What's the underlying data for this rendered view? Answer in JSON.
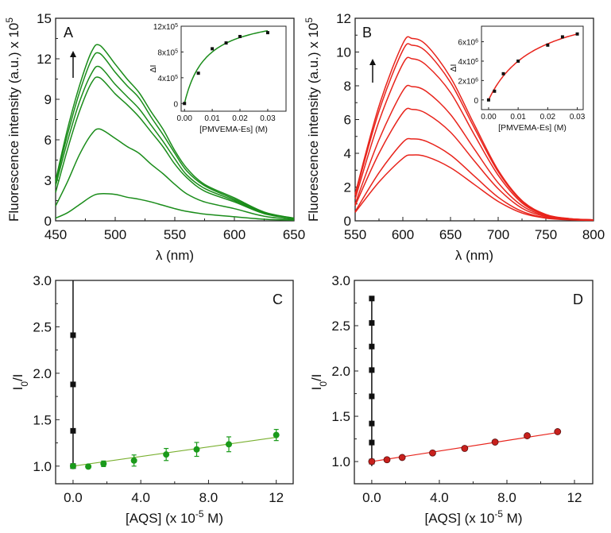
{
  "chart_data": [
    {
      "panel": "A",
      "type": "line",
      "letter": "A",
      "xlabel": "λ (nm)",
      "ylabel": "Fluorescence intensity (a.u.) x 10",
      "ylabel_sup": "5",
      "xlim": [
        450,
        650
      ],
      "ylim": [
        0,
        15
      ],
      "xticks": [
        450,
        500,
        550,
        600,
        650
      ],
      "xminor": 25,
      "yticks": [
        0,
        3,
        6,
        9,
        12,
        15
      ],
      "yminor": 1.5,
      "grid": false,
      "color": "#1a8c1a",
      "arrow": "up",
      "x": [
        450,
        460,
        470,
        480,
        487,
        500,
        510,
        520,
        530,
        540,
        550,
        560,
        575,
        600,
        625,
        650
      ],
      "series": [
        {
          "values": [
            3.0,
            6.8,
            10.0,
            12.5,
            13.0,
            11.6,
            10.5,
            9.5,
            8.1,
            6.8,
            5.2,
            3.9,
            2.7,
            1.7,
            0.65,
            0.2
          ]
        },
        {
          "values": [
            2.85,
            6.4,
            9.5,
            11.9,
            12.4,
            11.0,
            10.0,
            9.1,
            7.7,
            6.4,
            5.0,
            3.7,
            2.6,
            1.6,
            0.62,
            0.19
          ]
        },
        {
          "values": [
            2.6,
            5.9,
            8.8,
            10.9,
            11.4,
            10.1,
            9.2,
            8.3,
            7.1,
            5.9,
            4.6,
            3.4,
            2.4,
            1.5,
            0.57,
            0.17
          ]
        },
        {
          "values": [
            2.1,
            5.3,
            8.1,
            10.2,
            10.6,
            9.4,
            8.6,
            7.7,
            6.6,
            5.5,
            4.2,
            3.2,
            2.2,
            1.4,
            0.53,
            0.16
          ]
        },
        {
          "values": [
            1.1,
            2.9,
            4.9,
            6.4,
            6.8,
            6.1,
            5.5,
            5.0,
            4.2,
            3.5,
            2.7,
            2.0,
            1.4,
            0.9,
            0.34,
            0.1
          ]
        },
        {
          "values": [
            0.2,
            0.6,
            1.2,
            1.8,
            2.0,
            1.95,
            1.75,
            1.6,
            1.4,
            1.15,
            0.9,
            0.7,
            0.5,
            0.3,
            0.12,
            0.05
          ]
        }
      ],
      "inset": {
        "type": "scatter",
        "xlabel": "[PMVEMA-Es] (M)",
        "ylabel": "ΔI",
        "xlim": [
          -0.0012,
          0.0366
        ],
        "ylim": [
          -1.2,
          12
        ],
        "xticks": [
          0,
          0.01,
          0.02,
          0.03
        ],
        "xtick_labels": [
          "0.00",
          "0.01",
          "0.02",
          "0.03"
        ],
        "yticks": [
          0,
          4,
          8,
          12
        ],
        "ytick_labels": [
          "0",
          "4x10",
          "8x10",
          "12x10"
        ],
        "ytick_sup": "5",
        "points": {
          "x": [
            0,
            0.005,
            0.01,
            0.015,
            0.02,
            0.03
          ],
          "y": [
            0,
            4.7,
            8.5,
            9.4,
            10.4,
            11.0
          ]
        },
        "fit": {
          "model": "hyperbolic",
          "a": 14.24,
          "b": 0.0078
        },
        "fit_color": "#1a8c1a",
        "point_color": "#111111"
      }
    },
    {
      "panel": "B",
      "type": "line",
      "letter": "B",
      "xlabel": "λ (nm)",
      "ylabel": "Fluorescence intensity (a.u.) x 10",
      "ylabel_sup": "5",
      "xlim": [
        550,
        800
      ],
      "ylim": [
        0,
        12
      ],
      "xticks": [
        550,
        600,
        650,
        700,
        750,
        800
      ],
      "xminor": 25,
      "yticks": [
        0,
        2,
        4,
        6,
        8,
        10,
        12
      ],
      "yminor": 1,
      "grid": false,
      "color": "#e8241c",
      "arrow": "up",
      "x": [
        550,
        575,
        600,
        610,
        625,
        650,
        675,
        700,
        725,
        750,
        775,
        800
      ],
      "series": [
        {
          "values": [
            1.6,
            6.8,
            10.5,
            10.8,
            10.4,
            8.5,
            5.7,
            3.0,
            1.2,
            0.38,
            0.13,
            0.06
          ]
        },
        {
          "values": [
            1.5,
            6.5,
            10.1,
            10.4,
            10.0,
            8.2,
            5.5,
            2.9,
            1.15,
            0.36,
            0.12,
            0.06
          ]
        },
        {
          "values": [
            1.3,
            5.9,
            9.3,
            9.6,
            9.2,
            7.6,
            5.1,
            2.7,
            1.06,
            0.34,
            0.12,
            0.06
          ]
        },
        {
          "values": [
            1.0,
            4.8,
            7.7,
            7.95,
            7.65,
            6.3,
            4.25,
            2.25,
            0.9,
            0.3,
            0.1,
            0.05
          ]
        },
        {
          "values": [
            0.9,
            4.0,
            6.4,
            6.6,
            6.35,
            5.25,
            3.55,
            1.9,
            0.75,
            0.25,
            0.09,
            0.05
          ]
        },
        {
          "values": [
            0.55,
            2.85,
            4.65,
            4.85,
            4.7,
            3.9,
            2.65,
            1.4,
            0.56,
            0.19,
            0.07,
            0.04
          ]
        },
        {
          "values": [
            0.5,
            2.3,
            3.7,
            3.9,
            3.8,
            3.15,
            2.15,
            1.15,
            0.46,
            0.16,
            0.06,
            0.03
          ]
        }
      ],
      "inset": {
        "type": "scatter",
        "xlabel": "[PMVEMA-Es] (M)",
        "ylabel": "ΔI",
        "xlim": [
          -0.0024,
          0.032
        ],
        "ylim": [
          -1,
          7.6
        ],
        "xticks": [
          0,
          0.01,
          0.02,
          0.03
        ],
        "xtick_labels": [
          "0.00",
          "0.01",
          "0.02",
          "0.03"
        ],
        "yticks": [
          0,
          2,
          4,
          6
        ],
        "ytick_labels": [
          "0",
          "2x10",
          "4x10",
          "6x10"
        ],
        "ytick_sup": "6",
        "points": {
          "x": [
            0,
            0.002,
            0.005,
            0.01,
            0.02,
            0.025,
            0.03
          ],
          "y": [
            0,
            0.9,
            2.7,
            4.0,
            5.65,
            6.5,
            6.8
          ]
        },
        "fit": {
          "model": "hyperbolic",
          "a": 10.46,
          "b": 0.01615
        },
        "fit_color": "#e8241c",
        "point_color": "#111111"
      }
    },
    {
      "panel": "C",
      "type": "scatter",
      "letter": "C",
      "xlabel": "[AQS] (x 10",
      "xlabel_sup": "-5",
      "xlabel_tail": " M)",
      "ylabel": "I",
      "ylabel_sub": "0",
      "ylabel_tail": "/I",
      "xlim": [
        -1.03,
        13
      ],
      "ylim": [
        0.81,
        3.0
      ],
      "xticks": [
        0,
        4,
        8,
        12
      ],
      "xtick_labels": [
        "0.0",
        "4.0",
        "8.0",
        "12"
      ],
      "xminor": 2,
      "yticks": [
        1.0,
        1.5,
        2.0,
        2.5,
        3.0
      ],
      "ytick_labels": [
        "1.0",
        "1.5",
        "2.0",
        "2.5",
        "3.0"
      ],
      "yminor": 0.25,
      "grid": false,
      "series": [
        {
          "marker": "square",
          "color": "#111111",
          "x": [
            0,
            0,
            0,
            0
          ],
          "y": [
            1.0,
            1.38,
            1.88,
            2.41
          ],
          "fit_line": {
            "x": [
              0,
              0
            ],
            "y": [
              1.0,
              3.0
            ]
          }
        },
        {
          "marker": "circle",
          "color": "#1a9a1a",
          "x": [
            0,
            0.9,
            1.8,
            3.6,
            5.5,
            7.3,
            9.2,
            12
          ],
          "y": [
            1.0,
            0.995,
            1.025,
            1.06,
            1.125,
            1.18,
            1.235,
            1.335
          ],
          "error": [
            0,
            0.01,
            0.03,
            0.06,
            0.065,
            0.075,
            0.08,
            0.06
          ],
          "fit_line": {
            "x": [
              0,
              12
            ],
            "y": [
              1.0,
              1.31
            ]
          },
          "fit_color": "#7ab030"
        }
      ]
    },
    {
      "panel": "D",
      "type": "scatter",
      "letter": "D",
      "xlabel": "[AQS] (x 10",
      "xlabel_sup": "-5",
      "xlabel_tail": " M)",
      "ylabel": "I",
      "ylabel_sub": "0",
      "ylabel_tail": "/I",
      "xlim": [
        -1.03,
        13.08
      ],
      "ylim": [
        0.755,
        3.0
      ],
      "xticks": [
        0,
        4,
        8,
        12
      ],
      "xtick_labels": [
        "0.0",
        "4.0",
        "8.0",
        "12"
      ],
      "xminor": 2,
      "yticks": [
        1.0,
        1.5,
        2.0,
        2.5,
        3.0
      ],
      "ytick_labels": [
        "1.0",
        "1.5",
        "2.0",
        "2.5",
        "3.0"
      ],
      "yminor": 0.25,
      "grid": false,
      "series": [
        {
          "marker": "square",
          "color": "#111111",
          "x": [
            0,
            0,
            0,
            0,
            0,
            0,
            0,
            0
          ],
          "y": [
            1.0,
            1.21,
            1.42,
            1.72,
            2.01,
            2.27,
            2.53,
            2.8
          ],
          "fit_line": {
            "x": [
              0,
              0
            ],
            "y": [
              0.95,
              2.8
            ]
          }
        },
        {
          "marker": "circle",
          "color": "#c8201c",
          "x": [
            0,
            0.9,
            1.8,
            3.6,
            5.5,
            7.3,
            9.2,
            11
          ],
          "y": [
            1.0,
            1.02,
            1.045,
            1.095,
            1.145,
            1.215,
            1.285,
            1.33
          ],
          "fit_line": {
            "x": [
              0,
              11
            ],
            "y": [
              1.0,
              1.32
            ]
          },
          "fit_color": "#e8241c"
        }
      ]
    }
  ]
}
